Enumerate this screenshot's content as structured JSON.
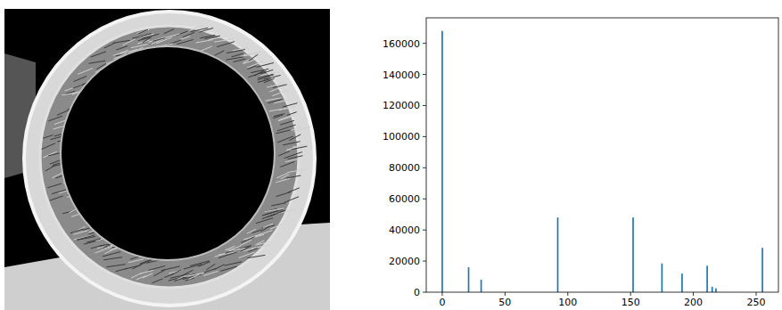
{
  "chart_data": {
    "type": "bar",
    "x": [
      0,
      21,
      31,
      92,
      152,
      175,
      191,
      211,
      215,
      218,
      255
    ],
    "values": [
      168000,
      16000,
      8000,
      48000,
      48000,
      18500,
      12000,
      17000,
      3500,
      2500,
      28500
    ],
    "color": "#1f77b4",
    "xlim": [
      -12.75,
      267.75
    ],
    "xticks": [
      0,
      50,
      100,
      150,
      200,
      250
    ],
    "ylim": [
      0,
      176400
    ],
    "yticks": [
      0,
      20000,
      40000,
      60000,
      80000,
      100000,
      120000,
      140000,
      160000
    ],
    "grid": false
  }
}
